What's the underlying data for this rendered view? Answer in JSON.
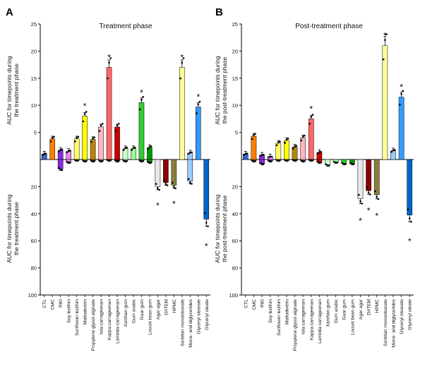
{
  "chart_data": [
    {
      "type": "bar",
      "panel": "A",
      "title": "Treatment phase",
      "ylabel_upper": [
        "AUC for timepoints during",
        "the treatment phase"
      ],
      "ylabel_lower": [
        "AUC for timepoints during",
        "the treatment phase"
      ],
      "upper_ylim": [
        0,
        25
      ],
      "upper_ticks": [
        5,
        10,
        15,
        20,
        25
      ],
      "lower_ylim": [
        0,
        100
      ],
      "lower_ticks": [
        20,
        40,
        60,
        80,
        100
      ],
      "categories": [
        "CTL",
        "CMC",
        "P80",
        "Soy lecithin",
        "Sunflower lecithin",
        "Maltodextrin",
        "Propylene glycol alginate",
        "Iota carrageenan",
        "Kappa carrageenan",
        "Lambda carrageenan",
        "Xanthan gum",
        "Gum arabic",
        "Guar gum",
        "Locust bean gum",
        "Agar agar",
        "DATEM",
        "HPMC",
        "Sorbitan monostearate",
        "Mono- and diglycerides",
        "Glyceryl stearate",
        "Glyceryl oleate"
      ],
      "colors": [
        "#3366cc",
        "#ff7f00",
        "#8a2be2",
        "#ee82ee",
        "#ffff66",
        "#ffff00",
        "#b8860b",
        "#ffb6c1",
        "#ff6666",
        "#cc0000",
        "#ccffcc",
        "#99ff99",
        "#33cc33",
        "#009900",
        "#e8e8e8",
        "#8b0000",
        "#8b7d3a",
        "#ffff99",
        "#99ccff",
        "#3399ff",
        "#0066cc"
      ],
      "up_values": [
        1.0,
        3.8,
        1.7,
        1.5,
        3.8,
        8.0,
        3.7,
        6.0,
        17.0,
        6.0,
        2.0,
        2.0,
        10.5,
        2.2,
        0,
        0,
        0,
        17.0,
        1.2,
        9.7,
        0
      ],
      "down_values": [
        0,
        0,
        7,
        2,
        0.5,
        1,
        1,
        1,
        0.5,
        1,
        1,
        0,
        1,
        2,
        20,
        17,
        19,
        0,
        16,
        0,
        44
      ],
      "up_stars": [
        5,
        8,
        12,
        17,
        19
      ],
      "down_stars": [
        14,
        16,
        20
      ]
    },
    {
      "type": "bar",
      "panel": "B",
      "title": "Post-treatment phase",
      "ylabel_upper": [
        "AUC for timepoints during",
        "the post-treatment phase"
      ],
      "ylabel_lower": [
        "AUC for timepoints during",
        "the post-treatment phase"
      ],
      "upper_ylim": [
        0,
        25
      ],
      "upper_ticks": [
        5,
        10,
        15,
        20,
        25
      ],
      "lower_ylim": [
        0,
        100
      ],
      "lower_ticks": [
        20,
        40,
        60,
        80,
        100
      ],
      "categories": [
        "CTL",
        "CMC",
        "P80",
        "Soy lecithin",
        "Sunflower lecithin",
        "Maltodextrin",
        "Propylene glycol alginate",
        "Iota carrageenan",
        "Kappa carrageenan",
        "Lambda carrageenan",
        "Xanthan gum",
        "Gum arabic",
        "Guar gum",
        "Locust bean gum",
        "Agar agar",
        "DATEM",
        "HPMC",
        "Sorbitan monostearate",
        "Mono- and diglycerides",
        "Glyceryl stearate",
        "Glyceryl oleate"
      ],
      "colors": [
        "#3366cc",
        "#ff7f00",
        "#8a2be2",
        "#ee82ee",
        "#ffff66",
        "#ffff00",
        "#b8860b",
        "#ffb6c1",
        "#ff6666",
        "#cc0000",
        "#ccffcc",
        "#99ff99",
        "#33cc33",
        "#009900",
        "#e8e8e8",
        "#8b0000",
        "#8b7d3a",
        "#ffff99",
        "#99ccff",
        "#3399ff",
        "#0066cc"
      ],
      "up_values": [
        1.0,
        4.3,
        0.8,
        0.5,
        3.0,
        3.5,
        2.3,
        4.0,
        7.5,
        1.3,
        0,
        0,
        0,
        0,
        0,
        0,
        0,
        21.0,
        1.6,
        11.5,
        0
      ],
      "down_values": [
        0,
        1,
        3,
        1,
        0.5,
        0.5,
        0.5,
        1,
        0.5,
        2,
        4,
        2,
        3,
        3,
        29,
        23,
        26,
        0,
        0,
        0,
        41
      ],
      "up_stars": [
        8,
        17,
        19
      ],
      "down_stars": [
        14,
        15,
        16,
        20
      ]
    }
  ]
}
